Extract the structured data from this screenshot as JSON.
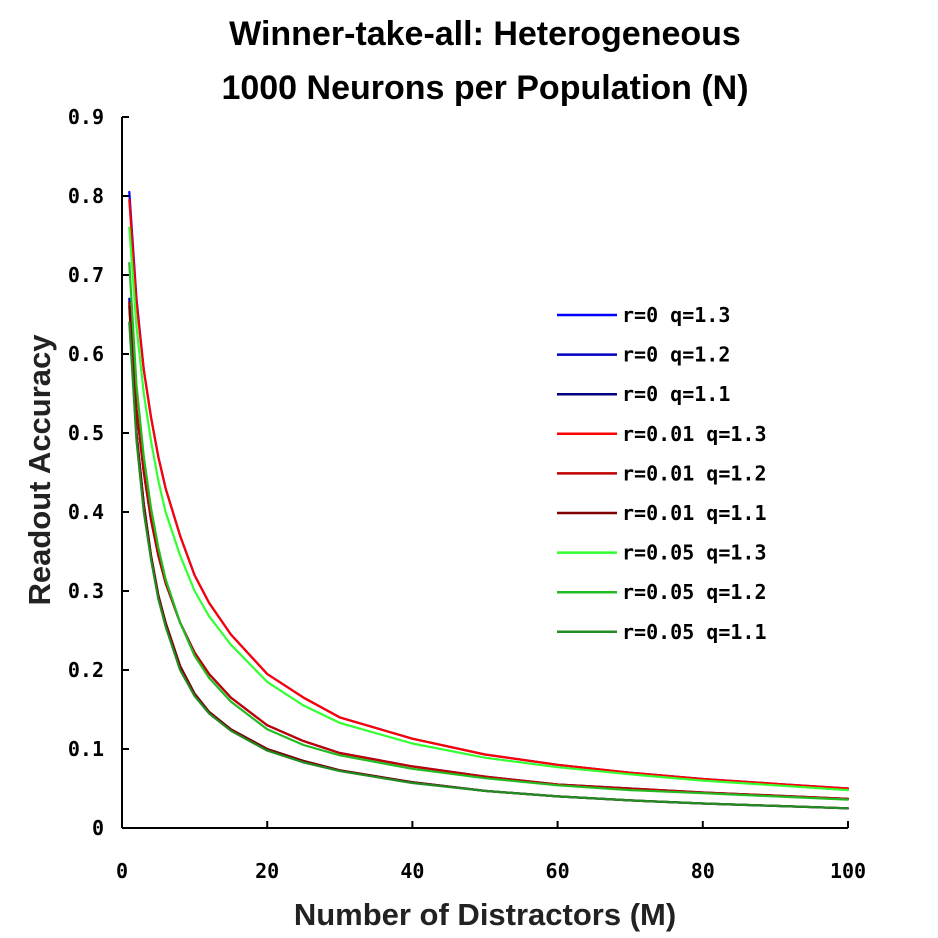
{
  "chart_data": {
    "type": "line",
    "title": "Winner-take-all: Heterogeneous",
    "subtitle": "1000 Neurons per Population (N)",
    "xlabel": "Number of Distractors (M)",
    "ylabel": "Readout Accuracy",
    "xlim": [
      0,
      100
    ],
    "ylim": [
      0,
      0.9
    ],
    "x_ticks": [
      "0",
      "20",
      "40",
      "60",
      "80",
      "100"
    ],
    "y_ticks": [
      "0",
      "0.1",
      "0.2",
      "0.3",
      "0.4",
      "0.5",
      "0.6",
      "0.7",
      "0.8",
      "0.9"
    ],
    "legend_position": "right",
    "grid": false,
    "x": [
      1,
      2,
      3,
      4,
      5,
      6,
      8,
      10,
      12,
      15,
      20,
      25,
      30,
      40,
      50,
      60,
      70,
      80,
      90,
      100
    ],
    "series": [
      {
        "name": "r=0 q=1.3",
        "color": "#0000ff",
        "values": [
          0.805,
          0.67,
          0.58,
          0.52,
          0.47,
          0.43,
          0.37,
          0.32,
          0.285,
          0.245,
          0.195,
          0.165,
          0.14,
          0.113,
          0.093,
          0.08,
          0.07,
          0.062,
          0.056,
          0.05
        ]
      },
      {
        "name": "r=0 q=1.2",
        "color": "#0000c0",
        "values": [
          0.67,
          0.53,
          0.45,
          0.39,
          0.345,
          0.31,
          0.26,
          0.222,
          0.195,
          0.165,
          0.13,
          0.11,
          0.095,
          0.078,
          0.065,
          0.055,
          0.05,
          0.045,
          0.041,
          0.037
        ]
      },
      {
        "name": "r=0 q=1.1",
        "color": "#000080",
        "values": [
          0.665,
          0.5,
          0.41,
          0.345,
          0.295,
          0.26,
          0.205,
          0.17,
          0.147,
          0.125,
          0.1,
          0.085,
          0.073,
          0.058,
          0.047,
          0.04,
          0.035,
          0.031,
          0.028,
          0.025
        ]
      },
      {
        "name": "r=0.01 q=1.3",
        "color": "#ff0000",
        "values": [
          0.795,
          0.665,
          0.58,
          0.52,
          0.47,
          0.43,
          0.37,
          0.32,
          0.285,
          0.245,
          0.195,
          0.165,
          0.14,
          0.113,
          0.093,
          0.08,
          0.07,
          0.062,
          0.056,
          0.05
        ]
      },
      {
        "name": "r=0.01 q=1.2",
        "color": "#c00000",
        "values": [
          0.665,
          0.53,
          0.45,
          0.39,
          0.345,
          0.31,
          0.26,
          0.222,
          0.195,
          0.165,
          0.13,
          0.11,
          0.095,
          0.078,
          0.065,
          0.055,
          0.05,
          0.045,
          0.041,
          0.037
        ]
      },
      {
        "name": "r=0.01 q=1.1",
        "color": "#800000",
        "values": [
          0.66,
          0.5,
          0.41,
          0.345,
          0.295,
          0.26,
          0.205,
          0.17,
          0.147,
          0.125,
          0.1,
          0.085,
          0.073,
          0.058,
          0.047,
          0.04,
          0.035,
          0.031,
          0.028,
          0.025
        ]
      },
      {
        "name": "r=0.05 q=1.3",
        "color": "#33ff33",
        "values": [
          0.76,
          0.635,
          0.55,
          0.49,
          0.44,
          0.4,
          0.345,
          0.3,
          0.268,
          0.232,
          0.185,
          0.155,
          0.133,
          0.107,
          0.089,
          0.077,
          0.068,
          0.06,
          0.054,
          0.048
        ]
      },
      {
        "name": "r=0.05 q=1.2",
        "color": "#22bb22",
        "values": [
          0.715,
          0.56,
          0.47,
          0.405,
          0.355,
          0.315,
          0.26,
          0.218,
          0.19,
          0.16,
          0.125,
          0.105,
          0.092,
          0.075,
          0.063,
          0.054,
          0.048,
          0.044,
          0.04,
          0.036
        ]
      },
      {
        "name": "r=0.05 q=1.1",
        "color": "#228b22",
        "values": [
          0.64,
          0.49,
          0.4,
          0.34,
          0.29,
          0.255,
          0.2,
          0.167,
          0.145,
          0.123,
          0.098,
          0.083,
          0.072,
          0.057,
          0.047,
          0.04,
          0.035,
          0.031,
          0.028,
          0.025
        ]
      }
    ]
  }
}
